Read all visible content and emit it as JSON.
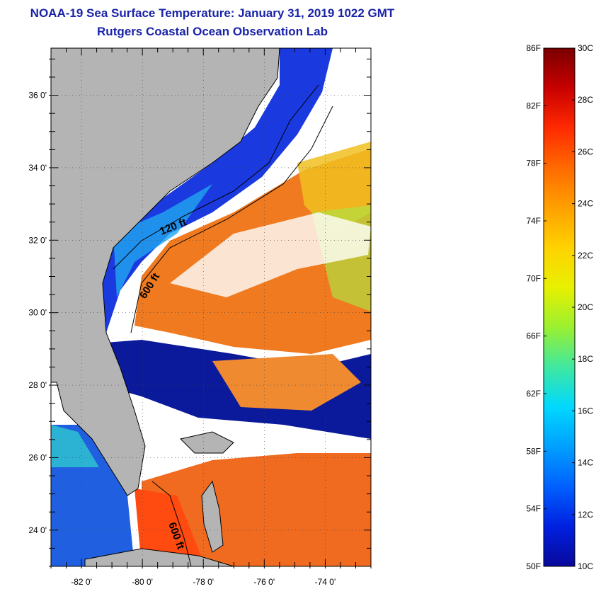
{
  "title": {
    "line1": "NOAA-19 Sea Surface Temperature:  January 31, 2019 1022 GMT",
    "line2": "Rutgers Coastal Ocean Observation Lab"
  },
  "map": {
    "lon_range": [
      -83,
      -72.5
    ],
    "lat_range": [
      23,
      37.3
    ],
    "lat_ticks": [
      {
        "value": 36,
        "label": "36 0'"
      },
      {
        "value": 34,
        "label": "34 0'"
      },
      {
        "value": 32,
        "label": "32 0'"
      },
      {
        "value": 30,
        "label": "30 0'"
      },
      {
        "value": 28,
        "label": "28 0'"
      },
      {
        "value": 26,
        "label": "26 0'"
      },
      {
        "value": 24,
        "label": "24 0'"
      }
    ],
    "lon_ticks": [
      {
        "value": -82,
        "label": "-82 0'"
      },
      {
        "value": -80,
        "label": "-80 0'"
      },
      {
        "value": -78,
        "label": "-78 0'"
      },
      {
        "value": -76,
        "label": "-76 0'"
      },
      {
        "value": -74,
        "label": "-74 0'"
      }
    ],
    "contour_labels": [
      {
        "id": "contour-label-120ft-north",
        "text": "120 ft"
      },
      {
        "id": "contour-label-600ft-north",
        "text": "600 ft"
      },
      {
        "id": "contour-label-600ft-south",
        "text": "600 ft"
      }
    ],
    "colors": {
      "land": "#b4b4b4",
      "cloud": "#ffffff",
      "cold_water": "#0a1e9a",
      "warm_water": "#f07820",
      "coastline": "#000000"
    }
  },
  "colorbar": {
    "min_c": 10,
    "max_c": 30,
    "fahrenheit_labels": [
      "86F",
      "82F",
      "78F",
      "74F",
      "70F",
      "66F",
      "62F",
      "58F",
      "54F",
      "50F"
    ],
    "celsius_labels": [
      "30C",
      "28C",
      "26C",
      "24C",
      "22C",
      "20C",
      "18C",
      "16C",
      "14C",
      "12C",
      "10C"
    ],
    "gradient_stops": [
      "#7a0000",
      "#c80000",
      "#ff2a00",
      "#ff6a00",
      "#ffa000",
      "#ffd200",
      "#e8f000",
      "#9af030",
      "#40e8a0",
      "#00d8ff",
      "#00a0ff",
      "#0060ff",
      "#0020e0",
      "#08089a"
    ]
  }
}
